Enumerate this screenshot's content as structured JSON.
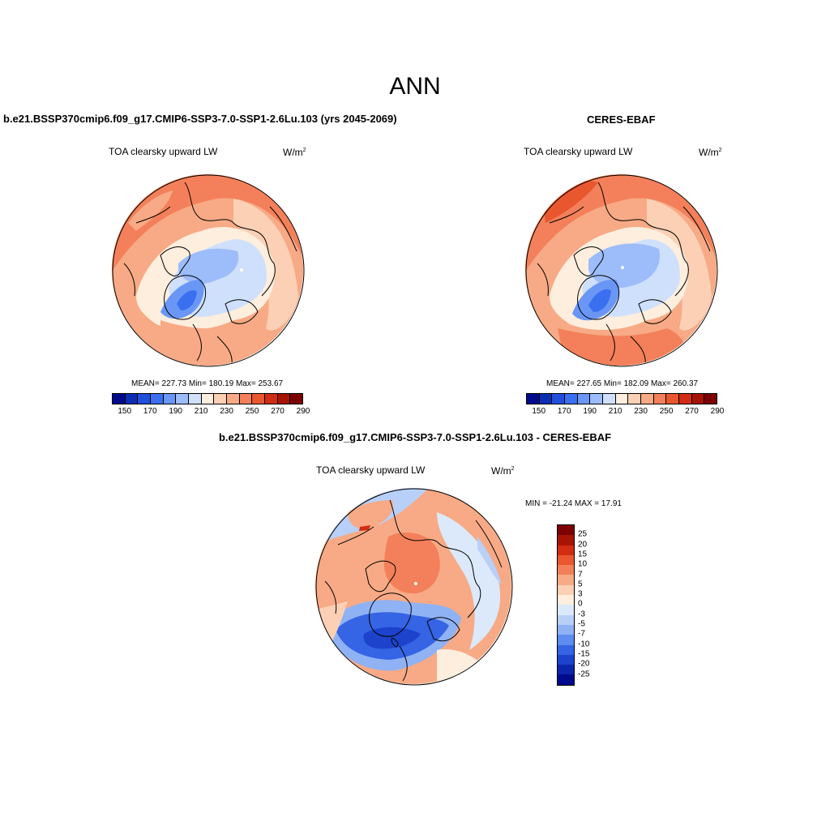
{
  "figure": {
    "title": "ANN"
  },
  "panels": [
    {
      "title": "b.e21.BSSP370cmip6.f09_g17.CMIP6-SSP3-7.0-SSP1-2.6Lu.103 (yrs 2045-2069)",
      "variable": "TOA clearsky upward LW",
      "units": "W/m",
      "units_sup": "2",
      "stats": "MEAN= 227.73  Min= 180.19  Max= 253.67"
    },
    {
      "title": "CERES-EBAF",
      "variable": "TOA clearsky upward LW",
      "units": "W/m",
      "units_sup": "2",
      "stats": "MEAN= 227.65  Min= 182.09  Max= 260.37"
    },
    {
      "title": "b.e21.BSSP370cmip6.f09_g17.CMIP6-SSP3-7.0-SSP1-2.6Lu.103 - CERES-EBAF",
      "variable": "TOA clearsky upward LW",
      "units": "W/m",
      "units_sup": "2",
      "stats": "MIN = -21.24 MAX =  17.91"
    }
  ],
  "abs_colorbar": {
    "colors": [
      "#000a8c",
      "#0a2fb4",
      "#1f4fdc",
      "#3a6ff0",
      "#6a96f5",
      "#9dbcfa",
      "#cfe0fc",
      "#fdeedd",
      "#fbd0b5",
      "#f7aa85",
      "#f3805a",
      "#e9572f",
      "#d22c12",
      "#a81404",
      "#7d0000"
    ],
    "labels": [
      "150",
      "170",
      "190",
      "210",
      "230",
      "250",
      "270",
      "290"
    ]
  },
  "diff_colorbar": {
    "colors": [
      "#7d0000",
      "#a81404",
      "#d22c12",
      "#e9572f",
      "#f3805a",
      "#f7aa85",
      "#fbd0b5",
      "#fdeedd",
      "#dbe9fb",
      "#b8d0f8",
      "#8fb2f4",
      "#5e8cf0",
      "#3564e4",
      "#1d43cc",
      "#0b26ac",
      "#000a8c"
    ],
    "labels": [
      "25",
      "20",
      "15",
      "10",
      "7",
      "5",
      "3",
      "0",
      "-3",
      "-5",
      "-7",
      "-10",
      "-15",
      "-20",
      "-25"
    ]
  }
}
